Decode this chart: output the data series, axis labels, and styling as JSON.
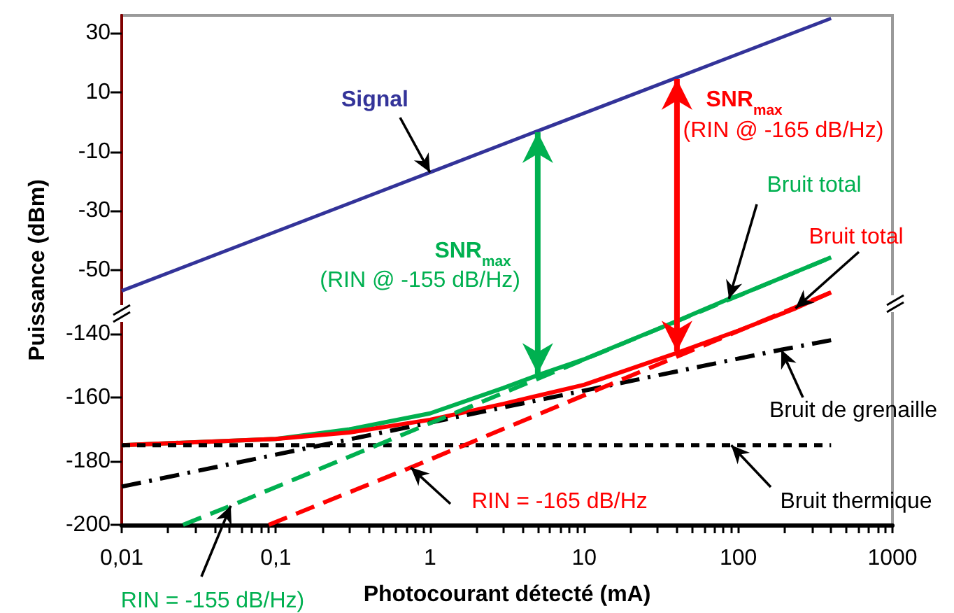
{
  "chart_data": {
    "type": "line",
    "xlabel": "Photocourant détecté (mA)",
    "ylabel": "Puissance (dBm)",
    "log": "x",
    "grid": false,
    "legend": false,
    "marker": "none",
    "xlim": [
      0.01,
      1000
    ],
    "xticks": [
      {
        "value": 0.01,
        "label": "0,01"
      },
      {
        "value": 0.1,
        "label": "0,1"
      },
      1,
      10,
      100,
      1000
    ],
    "ylim": [
      -200,
      -40
    ],
    "yticks": [
      -140,
      -160,
      -180,
      -200
    ],
    "y2lim": [
      -136,
      36
    ],
    "y2ticks": [
      30,
      10,
      -10,
      -30,
      -50
    ],
    "series": [
      {
        "color": "#333399",
        "line_style": "solid",
        "axis": "y2",
        "x": [
          0.01,
          1,
          5,
          40,
          400
        ],
        "values": [
          -57,
          -17,
          -3,
          15,
          35
        ]
      },
      {
        "color": "#00b050",
        "line_style": "solid",
        "x": [
          0.01,
          0.1,
          0.3,
          1,
          3,
          5,
          10,
          40,
          87,
          100,
          400
        ],
        "values": [
          -175,
          -173,
          -170,
          -165,
          -157,
          -153,
          -148,
          -136,
          -129,
          -128,
          -116
        ]
      },
      {
        "color": "#ff0000",
        "line_style": "solid",
        "x": [
          0.01,
          0.1,
          0.3,
          1,
          3,
          10,
          40,
          100,
          235,
          400
        ],
        "values": [
          -175,
          -173,
          -171,
          -167,
          -162,
          -156,
          -146,
          -139,
          -132,
          -127
        ]
      },
      {
        "color": "#000000",
        "line_style": "dashdot",
        "x": [
          0.01,
          190,
          400
        ],
        "values": [
          -188,
          -145,
          -142
        ]
      },
      {
        "color": "#000000",
        "line_style": "dotted",
        "x": [
          0.01,
          90,
          400
        ],
        "values": [
          -175,
          -175,
          -175
        ]
      },
      {
        "color": "#ff0000",
        "line_style": "dashed",
        "x": [
          0.09,
          0.75,
          400
        ],
        "values": [
          -200,
          -182,
          -127
        ]
      },
      {
        "color": "#00b050",
        "line_style": "dashed",
        "x": [
          0.025,
          0.051,
          400
        ],
        "values": [
          -200,
          -194,
          -116
        ]
      }
    ],
    "annotations": [
      "Signal",
      "SNR$_{max}$",
      "(RIN @ -155 dB/Hz)",
      "SNR$_{max}$",
      "(RIN @ -165 dB/Hz)",
      {
        "text": "Bruit total",
        "x": 87,
        "y": -129
      },
      {
        "text": "Bruit total",
        "x": 235,
        "y": -132
      },
      {
        "text": "Bruit de grenaille",
        "x": 190,
        "y": -145
      },
      {
        "text": "Bruit thermique",
        "x": 90,
        "y": -175
      },
      {
        "text": "RIN = -165 dB/Hz",
        "x": 0.75,
        "y": -182
      },
      {
        "text": "RIN = -155 dB/Hz)",
        "x": 0.051,
        "y": -194
      }
    ]
  }
}
